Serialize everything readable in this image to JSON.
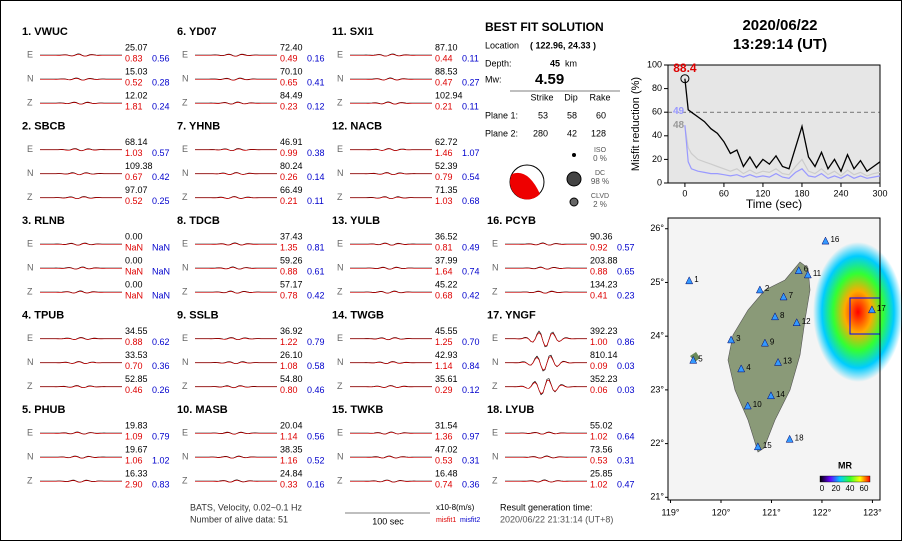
{
  "stations": [
    {
      "label": "1.  VWUC",
      "components": [
        {
          "name": "E",
          "amplitude": "25.07",
          "misfit1": "0.83",
          "misfit2": "0.56"
        },
        {
          "name": "N",
          "amplitude": "15.03",
          "misfit1": "0.52",
          "misfit2": "0.28"
        },
        {
          "name": "Z",
          "amplitude": "12.02",
          "misfit1": "1.81",
          "misfit2": "0.24"
        }
      ]
    },
    {
      "label": "2.  SBCB",
      "components": [
        {
          "name": "E",
          "amplitude": "68.14",
          "misfit1": "1.03",
          "misfit2": "0.57"
        },
        {
          "name": "N",
          "amplitude": "109.38",
          "misfit1": "0.67",
          "misfit2": "0.42"
        },
        {
          "name": "Z",
          "amplitude": "97.07",
          "misfit1": "0.52",
          "misfit2": "0.25"
        }
      ]
    },
    {
      "label": "3.  RLNB",
      "components": [
        {
          "name": "E",
          "amplitude": "0.00",
          "misfit1": "NaN",
          "misfit2": "NaN"
        },
        {
          "name": "N",
          "amplitude": "0.00",
          "misfit1": "NaN",
          "misfit2": "NaN"
        },
        {
          "name": "Z",
          "amplitude": "0.00",
          "misfit1": "NaN",
          "misfit2": "NaN"
        }
      ]
    },
    {
      "label": "4.  TPUB",
      "components": [
        {
          "name": "E",
          "amplitude": "34.55",
          "misfit1": "0.88",
          "misfit2": "0.62"
        },
        {
          "name": "N",
          "amplitude": "33.53",
          "misfit1": "0.70",
          "misfit2": "0.36"
        },
        {
          "name": "Z",
          "amplitude": "52.85",
          "misfit1": "0.46",
          "misfit2": "0.26"
        }
      ]
    },
    {
      "label": "5.  PHUB",
      "components": [
        {
          "name": "E",
          "amplitude": "19.83",
          "misfit1": "1.09",
          "misfit2": "0.79"
        },
        {
          "name": "N",
          "amplitude": "19.67",
          "misfit1": "1.06",
          "misfit2": "1.02"
        },
        {
          "name": "Z",
          "amplitude": "16.33",
          "misfit1": "2.90",
          "misfit2": "0.83"
        }
      ]
    },
    {
      "label": "6.  YD07",
      "components": [
        {
          "name": "E",
          "amplitude": "72.40",
          "misfit1": "0.49",
          "misfit2": "0.16"
        },
        {
          "name": "N",
          "amplitude": "70.10",
          "misfit1": "0.65",
          "misfit2": "0.41"
        },
        {
          "name": "Z",
          "amplitude": "84.49",
          "misfit1": "0.23",
          "misfit2": "0.12"
        }
      ]
    },
    {
      "label": "7.  YHNB",
      "components": [
        {
          "name": "E",
          "amplitude": "46.91",
          "misfit1": "0.99",
          "misfit2": "0.38"
        },
        {
          "name": "N",
          "amplitude": "80.24",
          "misfit1": "0.26",
          "misfit2": "0.14"
        },
        {
          "name": "Z",
          "amplitude": "66.49",
          "misfit1": "0.21",
          "misfit2": "0.11"
        }
      ]
    },
    {
      "label": "8.  TDCB",
      "components": [
        {
          "name": "E",
          "amplitude": "37.43",
          "misfit1": "1.35",
          "misfit2": "0.81"
        },
        {
          "name": "N",
          "amplitude": "59.26",
          "misfit1": "0.88",
          "misfit2": "0.61"
        },
        {
          "name": "Z",
          "amplitude": "57.17",
          "misfit1": "0.78",
          "misfit2": "0.42"
        }
      ]
    },
    {
      "label": "9.  SSLB",
      "components": [
        {
          "name": "E",
          "amplitude": "36.92",
          "misfit1": "1.22",
          "misfit2": "0.79"
        },
        {
          "name": "N",
          "amplitude": "26.10",
          "misfit1": "1.08",
          "misfit2": "0.58"
        },
        {
          "name": "Z",
          "amplitude": "54.80",
          "misfit1": "0.80",
          "misfit2": "0.46"
        }
      ]
    },
    {
      "label": "10.  MASB",
      "components": [
        {
          "name": "E",
          "amplitude": "20.04",
          "misfit1": "1.14",
          "misfit2": "0.56"
        },
        {
          "name": "N",
          "amplitude": "38.35",
          "misfit1": "1.16",
          "misfit2": "0.52"
        },
        {
          "name": "Z",
          "amplitude": "24.84",
          "misfit1": "0.33",
          "misfit2": "0.16"
        }
      ]
    },
    {
      "label": "11.  SXI1",
      "components": [
        {
          "name": "E",
          "amplitude": "87.10",
          "misfit1": "0.44",
          "misfit2": "0.11"
        },
        {
          "name": "N",
          "amplitude": "88.53",
          "misfit1": "0.47",
          "misfit2": "0.27"
        },
        {
          "name": "Z",
          "amplitude": "102.94",
          "misfit1": "0.21",
          "misfit2": "0.11"
        }
      ]
    },
    {
      "label": "12.  NACB",
      "components": [
        {
          "name": "E",
          "amplitude": "62.72",
          "misfit1": "1.46",
          "misfit2": "1.07"
        },
        {
          "name": "N",
          "amplitude": "52.39",
          "misfit1": "0.79",
          "misfit2": "0.54"
        },
        {
          "name": "Z",
          "amplitude": "71.35",
          "misfit1": "1.03",
          "misfit2": "0.68"
        }
      ]
    },
    {
      "label": "13.  YULB",
      "components": [
        {
          "name": "E",
          "amplitude": "36.52",
          "misfit1": "0.81",
          "misfit2": "0.49"
        },
        {
          "name": "N",
          "amplitude": "37.99",
          "misfit1": "1.64",
          "misfit2": "0.74"
        },
        {
          "name": "Z",
          "amplitude": "45.22",
          "misfit1": "0.68",
          "misfit2": "0.42"
        }
      ]
    },
    {
      "label": "14.  TWGB",
      "components": [
        {
          "name": "E",
          "amplitude": "45.55",
          "misfit1": "1.25",
          "misfit2": "0.70"
        },
        {
          "name": "N",
          "amplitude": "42.93",
          "misfit1": "1.14",
          "misfit2": "0.84"
        },
        {
          "name": "Z",
          "amplitude": "35.61",
          "misfit1": "0.29",
          "misfit2": "0.12"
        }
      ]
    },
    {
      "label": "15.  TWKB",
      "components": [
        {
          "name": "E",
          "amplitude": "31.54",
          "misfit1": "1.36",
          "misfit2": "0.97"
        },
        {
          "name": "N",
          "amplitude": "47.02",
          "misfit1": "0.53",
          "misfit2": "0.31"
        },
        {
          "name": "Z",
          "amplitude": "16.48",
          "misfit1": "0.74",
          "misfit2": "0.36"
        }
      ]
    },
    {
      "label": "16.  PCYB",
      "components": [
        {
          "name": "E",
          "amplitude": "90.36",
          "misfit1": "0.92",
          "misfit2": "0.57"
        },
        {
          "name": "N",
          "amplitude": "203.88",
          "misfit1": "0.88",
          "misfit2": "0.65"
        },
        {
          "name": "Z",
          "amplitude": "134.23",
          "misfit1": "0.41",
          "misfit2": "0.23"
        }
      ]
    },
    {
      "label": "17.  YNGF",
      "components": [
        {
          "name": "E",
          "amplitude": "392.23",
          "misfit1": "1.00",
          "misfit2": "0.86"
        },
        {
          "name": "N",
          "amplitude": "810.14",
          "misfit1": "0.09",
          "misfit2": "0.03"
        },
        {
          "name": "Z",
          "amplitude": "352.23",
          "misfit1": "0.06",
          "misfit2": "0.03"
        }
      ]
    },
    {
      "label": "18.  LYUB",
      "components": [
        {
          "name": "E",
          "amplitude": "55.02",
          "misfit1": "1.02",
          "misfit2": "0.64"
        },
        {
          "name": "N",
          "amplitude": "73.56",
          "misfit1": "0.53",
          "misfit2": "0.31"
        },
        {
          "name": "Z",
          "amplitude": "25.85",
          "misfit1": "1.02",
          "misfit2": "0.47"
        }
      ]
    }
  ],
  "solution": {
    "title": "BEST FIT SOLUTION",
    "location_label": "Location",
    "location": "( 122.96, 24.33 )",
    "depth_label": "Depth:",
    "depth": "45",
    "depth_unit": "km",
    "mw_label": "Mw:",
    "mw": "4.59",
    "headers": [
      "Strike",
      "Dip",
      "Rake"
    ],
    "planes": [
      {
        "label": "Plane 1:",
        "values": [
          "53",
          "58",
          "60"
        ]
      },
      {
        "label": "Plane 2:",
        "values": [
          "280",
          "42",
          "128"
        ]
      }
    ],
    "components": [
      {
        "name": "ISO",
        "value": "0 %"
      },
      {
        "name": "DC",
        "value": "98 %"
      },
      {
        "name": "CLVD",
        "value": "2 %"
      }
    ]
  },
  "header": {
    "date": "2020/06/22",
    "time": "13:29:14  (UT)"
  },
  "footer": {
    "line1": "BATS, Velocity, 0.02~0.1 Hz",
    "line2": "Number of alive data: 51",
    "scale": "100 sec",
    "units": "x10-8(m/s)",
    "misfit1": "misfit1",
    "misfit2": "misfit2",
    "result_label": "Result generation time:",
    "result_time": "2020/06/22 21:31:14 (UT+8)"
  },
  "chart_data": {
    "type": "line",
    "x_label": "Time (sec)",
    "y_label": "Misfit reduction (%)",
    "x": [
      0,
      5,
      10,
      20,
      30,
      40,
      50,
      60,
      70,
      80,
      90,
      100,
      110,
      120,
      130,
      140,
      150,
      160,
      170,
      180,
      190,
      200,
      210,
      220,
      230,
      240,
      250,
      260,
      270,
      280,
      290,
      300
    ],
    "series": [
      {
        "color": "#cccccc",
        "values": [
          48,
          30,
          25,
          20,
          18,
          16,
          14,
          12,
          10,
          12,
          8,
          11,
          8,
          10,
          9,
          12,
          8,
          7,
          14,
          20,
          10,
          8,
          12,
          7,
          10,
          6,
          11,
          7,
          9,
          6,
          8,
          9
        ],
        "value_labels": [
          "48",
          null,
          null,
          null,
          null,
          null,
          null,
          null,
          null,
          null,
          null,
          null,
          null,
          null,
          null,
          null,
          null,
          null,
          null,
          null,
          null,
          null,
          null,
          null,
          null,
          null,
          null,
          null,
          null,
          null,
          null,
          null
        ],
        "label_color": "#999999"
      },
      {
        "color": "#9999ff",
        "values": [
          49,
          18,
          12,
          10,
          9,
          8,
          8,
          7,
          6,
          7,
          5,
          7,
          5,
          6,
          5,
          8,
          5,
          4,
          9,
          12,
          6,
          5,
          8,
          4,
          6,
          4,
          7,
          4,
          6,
          4,
          5,
          6
        ],
        "value_labels": [
          "49",
          null,
          null,
          null,
          null,
          null,
          null,
          null,
          null,
          null,
          null,
          null,
          null,
          null,
          null,
          null,
          null,
          null,
          null,
          null,
          null,
          null,
          null,
          null,
          null,
          null,
          null,
          null,
          null,
          null,
          null,
          null
        ],
        "label_color": "#9999ff"
      },
      {
        "color": "#000000",
        "values": [
          88.4,
          62,
          60,
          56,
          52,
          46,
          42,
          35,
          25,
          28,
          14,
          22,
          13,
          20,
          16,
          23,
          14,
          12,
          30,
          48,
          22,
          14,
          26,
          12,
          20,
          10,
          24,
          12,
          19,
          10,
          14,
          18
        ],
        "value_labels": [
          "88.4",
          null,
          null,
          null,
          null,
          null,
          null,
          null,
          null,
          null,
          null,
          null,
          null,
          null,
          null,
          null,
          null,
          null,
          null,
          null,
          null,
          null,
          null,
          null,
          null,
          null,
          null,
          null,
          null,
          null,
          null,
          null
        ],
        "label_color": "#dd0000"
      }
    ],
    "xlim": [
      -26,
      300
    ],
    "ylim": [
      0,
      100
    ],
    "xticks": [
      0,
      60,
      120,
      180,
      240,
      300
    ],
    "yticks": [
      0,
      20,
      40,
      60,
      80,
      100
    ],
    "reference_line": 60
  },
  "map": {
    "xlim": [
      118.95,
      123.15
    ],
    "ylim": [
      20.95,
      26.2
    ],
    "xticks": [
      {
        "value": 119,
        "label": "119°"
      },
      {
        "value": 120,
        "label": "120°"
      },
      {
        "value": 121,
        "label": "121°"
      },
      {
        "value": 122,
        "label": "122°"
      },
      {
        "value": 123,
        "label": "123°"
      }
    ],
    "yticks": [
      {
        "value": 21,
        "label": "21°"
      },
      {
        "value": 22,
        "label": "22°"
      },
      {
        "value": 23,
        "label": "23°"
      },
      {
        "value": 24,
        "label": "24°"
      },
      {
        "value": 25,
        "label": "25°"
      },
      {
        "value": 26,
        "label": "26°"
      }
    ],
    "stations": [
      {
        "label": "1",
        "lon": 119.37,
        "lat": 25.03
      },
      {
        "label": "2",
        "lon": 120.77,
        "lat": 24.86
      },
      {
        "label": "3",
        "lon": 120.2,
        "lat": 23.93
      },
      {
        "label": "4",
        "lon": 120.4,
        "lat": 23.39
      },
      {
        "label": "5",
        "lon": 119.45,
        "lat": 23.55
      },
      {
        "label": "6",
        "lon": 121.54,
        "lat": 25.22
      },
      {
        "label": "7",
        "lon": 121.24,
        "lat": 24.73
      },
      {
        "label": "8",
        "lon": 121.07,
        "lat": 24.36
      },
      {
        "label": "9",
        "lon": 120.87,
        "lat": 23.87
      },
      {
        "label": "10",
        "lon": 120.53,
        "lat": 22.7
      },
      {
        "label": "11",
        "lon": 121.72,
        "lat": 25.14
      },
      {
        "label": "12",
        "lon": 121.5,
        "lat": 24.25
      },
      {
        "label": "13",
        "lon": 121.13,
        "lat": 23.51
      },
      {
        "label": "14",
        "lon": 120.99,
        "lat": 22.89
      },
      {
        "label": "15",
        "lon": 120.73,
        "lat": 21.94
      },
      {
        "label": "16",
        "lon": 122.07,
        "lat": 25.77
      },
      {
        "label": "17",
        "lon": 122.99,
        "lat": 24.49
      },
      {
        "label": "18",
        "lon": 121.36,
        "lat": 22.08
      }
    ],
    "colorbar_title": "MR",
    "colorbar_ticks": [
      "0",
      "20",
      "40",
      "60"
    ]
  }
}
